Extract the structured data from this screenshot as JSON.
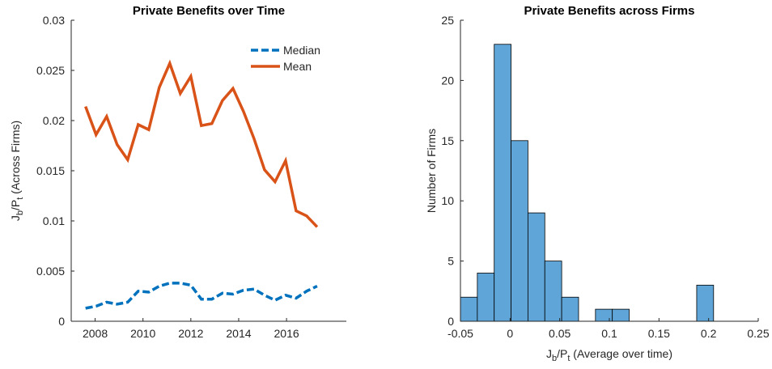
{
  "chart_data": [
    {
      "type": "line",
      "title": "Private Benefits over Time",
      "ylabel": [
        {
          "text": "J"
        },
        {
          "text": "b",
          "sub": true
        },
        {
          "text": "/P"
        },
        {
          "text": "t",
          "sub": true
        },
        {
          "text": " (Across Firms)"
        }
      ],
      "x": [
        2007.6,
        2008.04,
        2008.48,
        2008.92,
        2009.36,
        2009.8,
        2010.24,
        2010.68,
        2011.12,
        2011.56,
        2012.0,
        2012.44,
        2012.88,
        2013.32,
        2013.76,
        2014.2,
        2014.64,
        2015.08,
        2015.52,
        2015.96,
        2016.4,
        2016.84,
        2017.28
      ],
      "series": [
        {
          "name": "Median",
          "color": "#0072BD",
          "linestyle": "dashed",
          "values": [
            0.0013,
            0.0015,
            0.0019,
            0.0017,
            0.0019,
            0.003,
            0.0029,
            0.0035,
            0.0038,
            0.0038,
            0.0036,
            0.0022,
            0.0022,
            0.0028,
            0.0027,
            0.0031,
            0.0032,
            0.0026,
            0.0021,
            0.0026,
            0.0023,
            0.003,
            0.0035
          ]
        },
        {
          "name": "Mean",
          "color": "#D95319",
          "linestyle": "solid",
          "values": [
            0.0214,
            0.0186,
            0.0204,
            0.0176,
            0.0161,
            0.0196,
            0.0191,
            0.0233,
            0.0257,
            0.0227,
            0.0244,
            0.0195,
            0.0197,
            0.022,
            0.0232,
            0.0209,
            0.0182,
            0.0151,
            0.0139,
            0.016,
            0.011,
            0.0105,
            0.0094
          ]
        }
      ],
      "xlim": [
        2007,
        2018.5
      ],
      "xticks": [
        2008,
        2010,
        2012,
        2014,
        2016
      ],
      "ylim": [
        0,
        0.03
      ],
      "yticks": [
        0,
        0.005,
        0.01,
        0.015,
        0.02,
        0.025,
        0.03
      ],
      "legend": "upper right"
    },
    {
      "type": "histogram",
      "title": "Private Benefits across Firms",
      "xlabel": [
        {
          "text": "J"
        },
        {
          "text": "b",
          "sub": true
        },
        {
          "text": "/P"
        },
        {
          "text": "t",
          "sub": true
        },
        {
          "text": " (Average over time)"
        }
      ],
      "ylabel": [
        {
          "text": "Number of Firms"
        }
      ],
      "bins": [
        -0.05,
        -0.033,
        -0.016,
        0.001,
        0.018,
        0.035,
        0.052,
        0.069,
        0.086,
        0.103,
        0.12,
        0.137,
        0.154,
        0.171,
        0.188,
        0.205
      ],
      "values": [
        2,
        4,
        23,
        15,
        9,
        5,
        2,
        0,
        1,
        1,
        0,
        0,
        0,
        0,
        3
      ],
      "color": "#5fa5d8",
      "xlim": [
        -0.05,
        0.25
      ],
      "xticks": [
        -0.05,
        0,
        0.05,
        0.1,
        0.15,
        0.2,
        0.25
      ],
      "ylim": [
        0,
        25
      ],
      "yticks": [
        0,
        5,
        10,
        15,
        20,
        25
      ]
    }
  ]
}
